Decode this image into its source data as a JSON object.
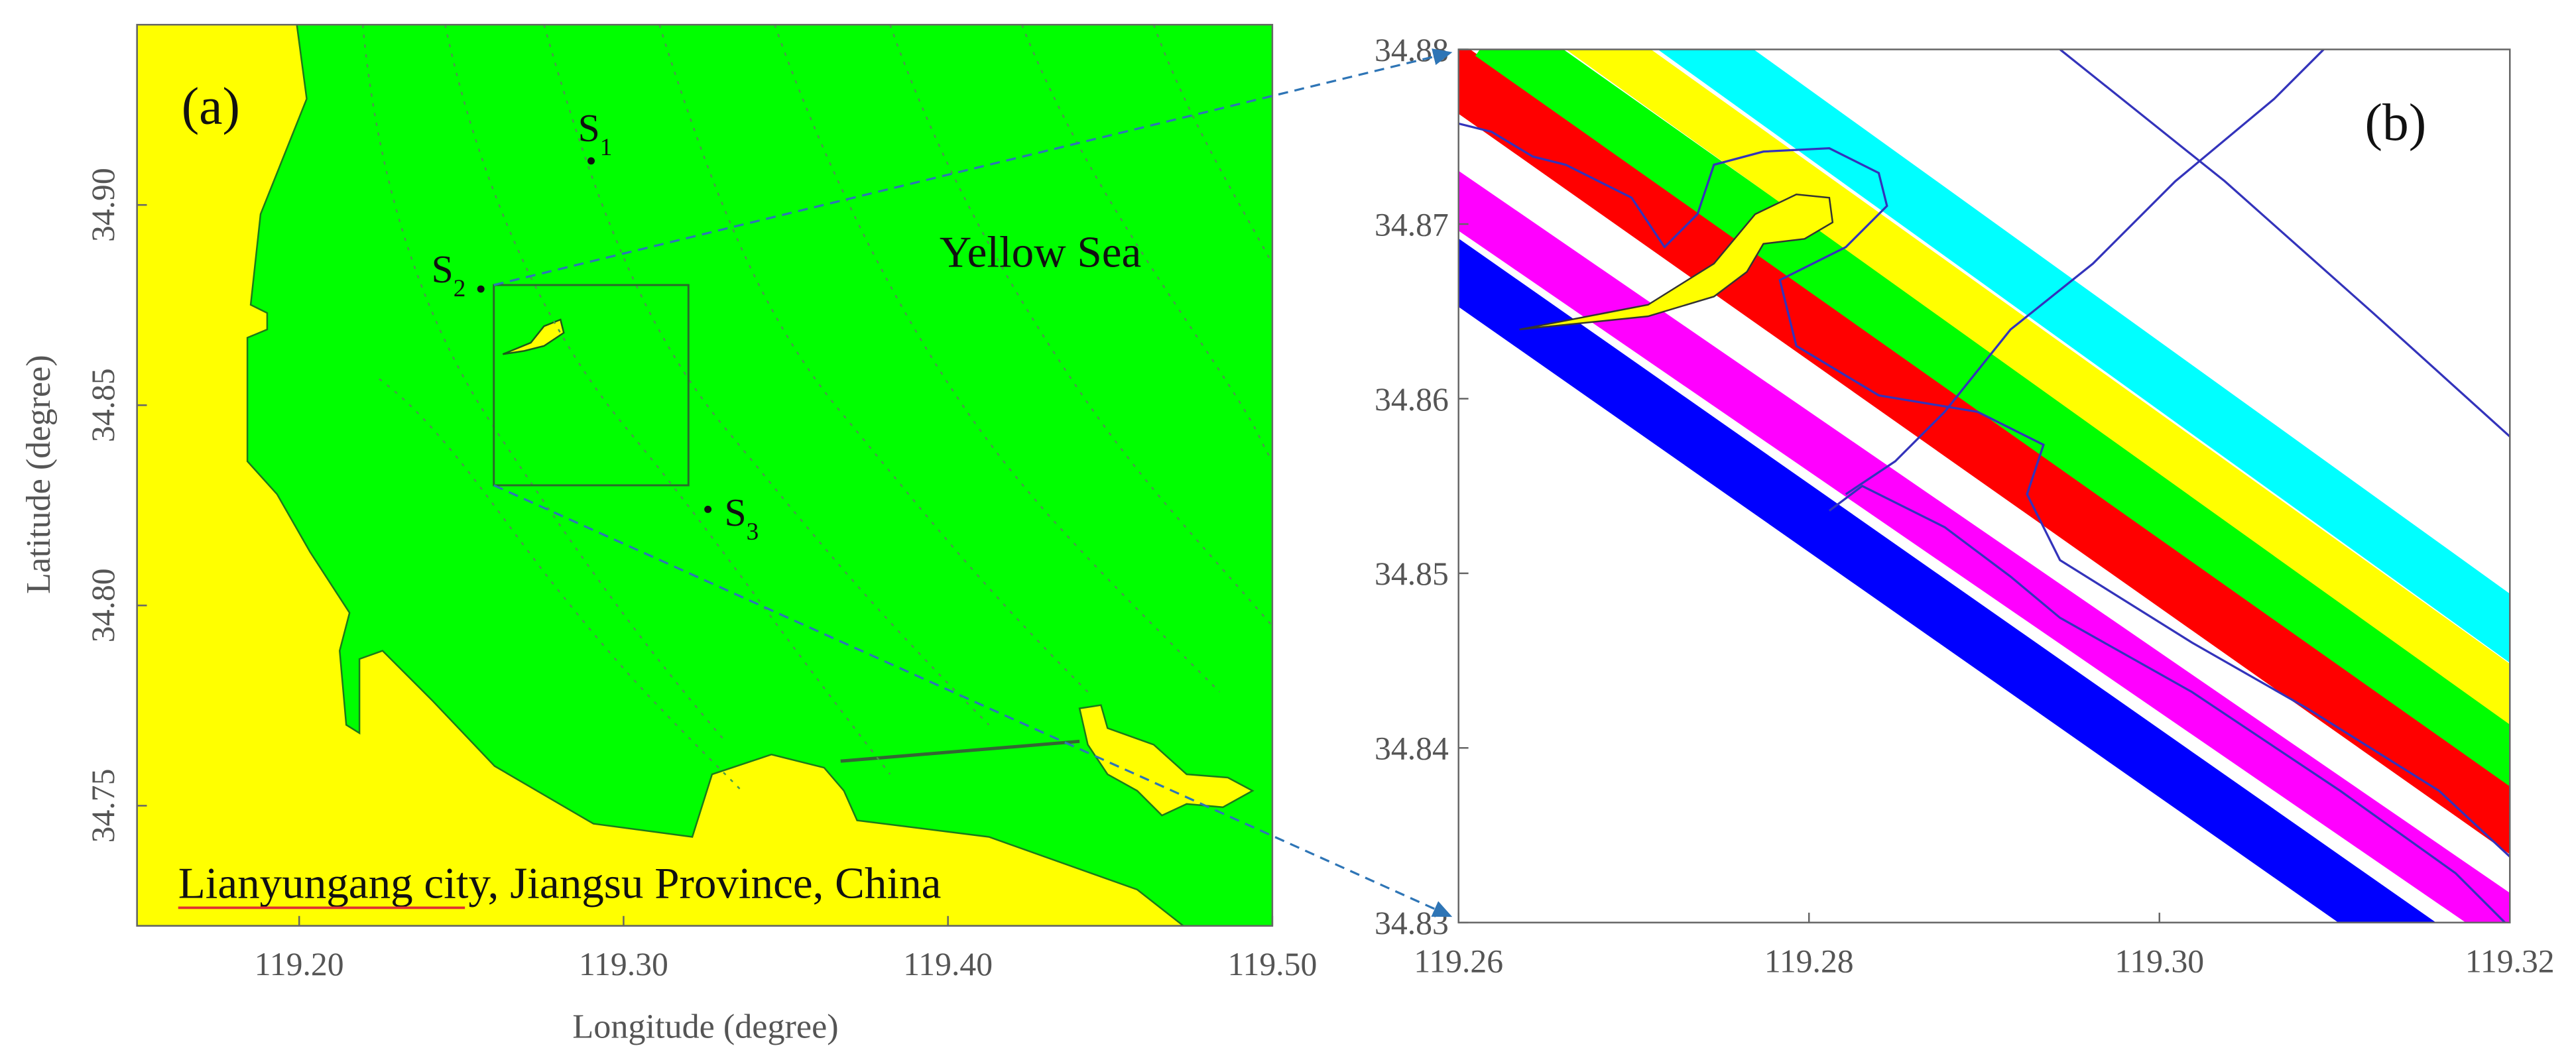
{
  "panel_a": {
    "label": "(a)",
    "xlabel": "Longitude (degree)",
    "ylabel": "Latitude (degree)",
    "xlim": [
      119.15,
      119.5
    ],
    "ylim": [
      34.72,
      34.945
    ],
    "xticks": [
      {
        "value": 119.2,
        "label": "119.20"
      },
      {
        "value": 119.3,
        "label": "119.30"
      },
      {
        "value": 119.4,
        "label": "119.40"
      },
      {
        "value": 119.5,
        "label": "119.50"
      }
    ],
    "yticks": [
      34.75,
      {
        "value": 34.8,
        "label": "34.80"
      },
      34.85,
      {
        "value": 34.9,
        "label": "34.90"
      }
    ],
    "sea_label": "Yellow Sea",
    "place_label": "Lianyungang city, Jiangsu Province, China",
    "stations": [
      {
        "name": "S",
        "sub": "1",
        "lon": 119.29,
        "lat": 34.911
      },
      {
        "name": "S",
        "sub": "2",
        "lon": 119.256,
        "lat": 34.879
      },
      {
        "name": "S",
        "sub": "3",
        "lon": 119.326,
        "lat": 34.824
      }
    ]
  },
  "panel_b": {
    "label": "(b)",
    "xlim": [
      119.26,
      119.32
    ],
    "ylim": [
      34.83,
      34.88
    ],
    "xticks": [
      119.26,
      119.28,
      {
        "value": 119.3,
        "label": "119.30"
      },
      119.32
    ],
    "yticks": [
      34.83,
      34.84,
      34.85,
      34.86,
      34.87,
      34.88
    ]
  }
}
